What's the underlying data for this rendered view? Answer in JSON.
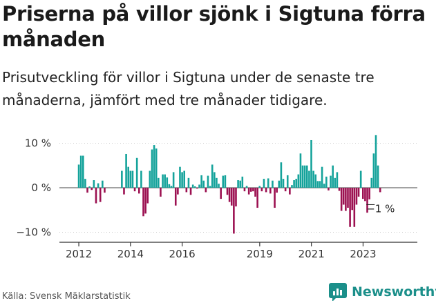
{
  "header": {
    "title": "Priserna på villor sjönk i Sigtuna förra månaden",
    "subtitle": "Prisutveckling för villor i Sigtuna under de senaste tre månaderna, jämfört med tre månader tidigare."
  },
  "footer": {
    "source": "Källa: Svensk Mäklarstatistik",
    "brand": "Newsworthy"
  },
  "colors": {
    "positive": "#15a39b",
    "negative": "#9c1151",
    "axis": "#333333",
    "grid": "#cccccc"
  },
  "chart_data": {
    "type": "bar",
    "title": "Priserna på villor sjönk i Sigtuna förra månaden",
    "subtitle": "Prisutveckling för villor i Sigtuna under de senaste tre månaderna, jämfört med tre månader tidigare.",
    "xlabel": "",
    "ylabel": "",
    "ylim": [
      -12,
      12
    ],
    "y_ticks": [
      10,
      0,
      -10
    ],
    "y_tick_labels": [
      "10 %",
      "0 %",
      "−10 %"
    ],
    "x_ticks": [
      2012,
      2014,
      2016,
      2019,
      2021,
      2023
    ],
    "x_tick_labels": [
      "2012",
      "2014",
      "2016",
      "2019",
      "2021",
      "2023"
    ],
    "x_range": [
      2011.25,
      2025.1
    ],
    "start": 2012.0,
    "step": 0.0833,
    "values": [
      5.2,
      7.2,
      7.2,
      2.0,
      -1.1,
      0.3,
      -0.5,
      1.7,
      -3.5,
      1.0,
      -3.2,
      1.6,
      -1.1,
      null,
      null,
      null,
      null,
      null,
      null,
      null,
      3.8,
      -1.5,
      7.6,
      4.7,
      3.8,
      3.8,
      -0.8,
      6.7,
      -1.3,
      3.8,
      -6.4,
      -5.8,
      -3.5,
      3.8,
      8.6,
      9.6,
      8.8,
      2.2,
      -2.0,
      3.0,
      3.0,
      2.3,
      0.8,
      0.4,
      3.5,
      -4.0,
      -1.5,
      4.7,
      3.5,
      3.8,
      -1.0,
      2.2,
      -1.6,
      0.7,
      0.3,
      -0.2,
      0.7,
      2.8,
      1.6,
      -1.0,
      2.7,
      0.4,
      5.2,
      3.5,
      2.2,
      0.9,
      -2.5,
      2.7,
      2.8,
      -1.6,
      -3.2,
      -4.0,
      -10.3,
      -4.2,
      1.7,
      1.6,
      2.5,
      -0.8,
      0.4,
      -1.5,
      -0.9,
      -0.8,
      -2.0,
      -4.5,
      0.4,
      -0.8,
      2.0,
      -1.0,
      2.1,
      -1.3,
      1.6,
      -4.5,
      -1.1,
      1.6,
      5.7,
      2.0,
      -0.8,
      2.8,
      -1.5,
      0.6,
      1.7,
      2.0,
      3.0,
      7.7,
      5.0,
      5.0,
      5.0,
      3.8,
      10.7,
      3.8,
      3.0,
      1.5,
      1.5,
      4.7,
      0.9,
      2.5,
      -0.6,
      2.7,
      5.0,
      2.2,
      3.5,
      -0.7,
      -5.2,
      -3.8,
      -5.2,
      -4.5,
      -8.8,
      -5.0,
      -8.8,
      -3.8,
      -2.0,
      3.8,
      -2.5,
      -3.0,
      -5.6,
      -2.6,
      2.2,
      7.7,
      11.8,
      5.0,
      -1.0
    ],
    "highlight_label": "−1 %"
  }
}
